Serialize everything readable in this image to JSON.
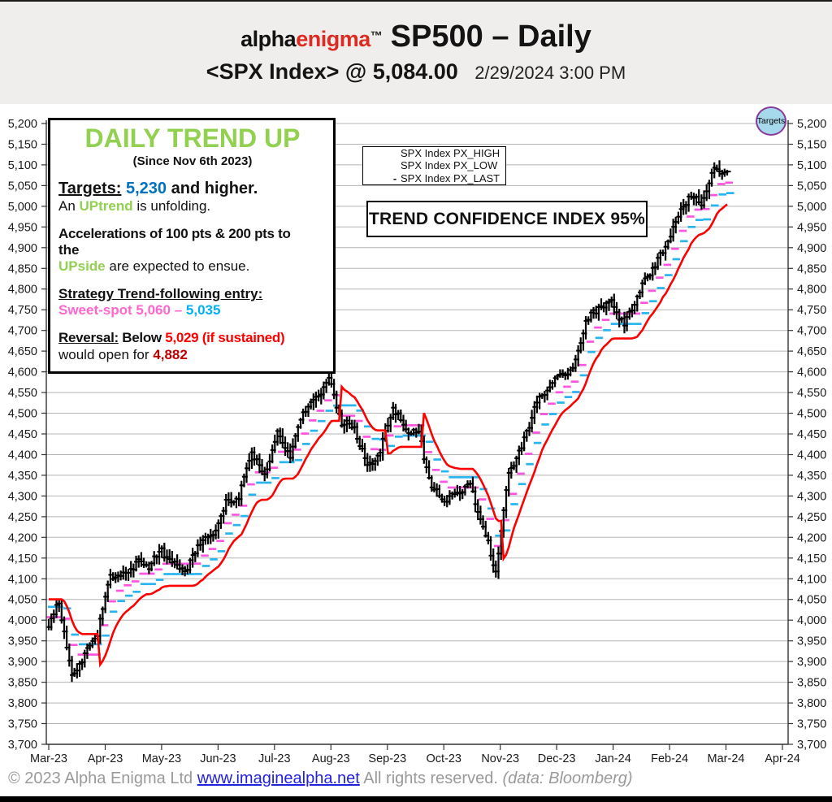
{
  "colors": {
    "brand_red": "#dd2a22",
    "green": "#92d050",
    "blue": "#0070c0",
    "pink": "#ff66cc",
    "cyan": "#00b0f0",
    "red": "#ff0000",
    "dark_red": "#c00000"
  },
  "header": {
    "brand_alpha": "alpha",
    "brand_enigma": "enigma",
    "brand_tm": "™",
    "title": "SP500 – Daily",
    "subtitle": "<SPX Index> @ 5,084.00",
    "datetime": "2/29/2024 3:00 PM"
  },
  "annotation_box": {
    "title": "DAILY TREND UP",
    "since": "(Since Nov 6th 2023)",
    "targets_label": "Targets:",
    "targets_value": "5,230",
    "targets_suffix": "and higher.",
    "uptrend_prefix": "An",
    "uptrend_word": "UPtrend",
    "uptrend_suffix": "is unfolding.",
    "accel_line1": "Accelerations of 100 pts & 200 pts to",
    "accel_line2": "the",
    "upside_word": "UPside",
    "upside_suffix": "are expected to ensue.",
    "strategy_label": "Strategy Trend-following entry:",
    "sweet_pink": "Sweet-spot 5,060",
    "sweet_dash": "–",
    "sweet_cyan": "5,035",
    "reversal_label": "Reversal:",
    "reversal_mid": "Below",
    "reversal_red": "5,029 (if sustained)",
    "reversal2_prefix": "would open for",
    "reversal2_value": "4,882"
  },
  "legend": {
    "items": [
      {
        "marker": "",
        "label": "SPX Index PX_HIGH"
      },
      {
        "marker": "",
        "label": "SPX Index PX_LOW"
      },
      {
        "marker": "-",
        "label": "SPX Index PX_LAST"
      }
    ]
  },
  "confidence_banner": "TREND CONFIDENCE INDEX 95%",
  "targets_badge": "Targets",
  "footer": {
    "copyright": "© 2023 Alpha Enigma Ltd",
    "link": "www.imaginealpha.net",
    "rights": "All rights reserved.",
    "source": "(data: Bloomberg)"
  },
  "chart_data": {
    "type": "hlc_bar_with_trailing_stop",
    "title": "SPX Index daily high/low/last bars with trend-following trailing lines",
    "legend_entries": [
      "SPX Index PX_HIGH",
      "SPX Index PX_LOW",
      "SPX Index PX_LAST"
    ],
    "legend_position": "top-center-box",
    "grid": "horizontal-only",
    "ylim": [
      3700,
      5200
    ],
    "ytick_step": 50,
    "x_tick_labels": [
      "Mar-23",
      "Apr-23",
      "May-23",
      "Jun-23",
      "Jul-23",
      "Aug-23",
      "Sep-23",
      "Oct-23",
      "Nov-23",
      "Dec-23",
      "Jan-24",
      "Feb-24",
      "Mar-24",
      "Apr-24"
    ],
    "weekly_close_series": {
      "start": "2023-03-03",
      "interval": "weekly",
      "values": [
        4045,
        3862,
        3917,
        3971,
        4109,
        4105,
        4138,
        4134,
        4169,
        4136,
        4124,
        4192,
        4205,
        4282,
        4299,
        4410,
        4348,
        4450,
        4399,
        4505,
        4536,
        4582,
        4478,
        4464,
        4370,
        4406,
        4516,
        4457,
        4450,
        4320,
        4288,
        4309,
        4328,
        4224,
        4117,
        4358,
        4415,
        4514,
        4559,
        4595,
        4604,
        4719,
        4755,
        4770,
        4712,
        4784,
        4840,
        4891,
        4959,
        5027,
        5006,
        5089,
        5084
      ]
    },
    "start_close": 3966,
    "last_close": 5084,
    "recent_high": 5111,
    "trend_state_start": "down",
    "trailing_lines": {
      "stop_line": {
        "color": "#fe0000",
        "offset_up": 50,
        "offset_down": 55,
        "note": "red reversal stop, ends ~5,029"
      },
      "sweet_upper": {
        "color": "#ff54e0",
        "offset": 24,
        "note": "magenta dashes, ends ~5,060"
      },
      "sweet_lower": {
        "color": "#28b4ef",
        "offset": 49,
        "note": "cyan dashes, ends ~5,035"
      }
    },
    "bar_color": "#000000",
    "grid_color": "#b5b5b5"
  }
}
